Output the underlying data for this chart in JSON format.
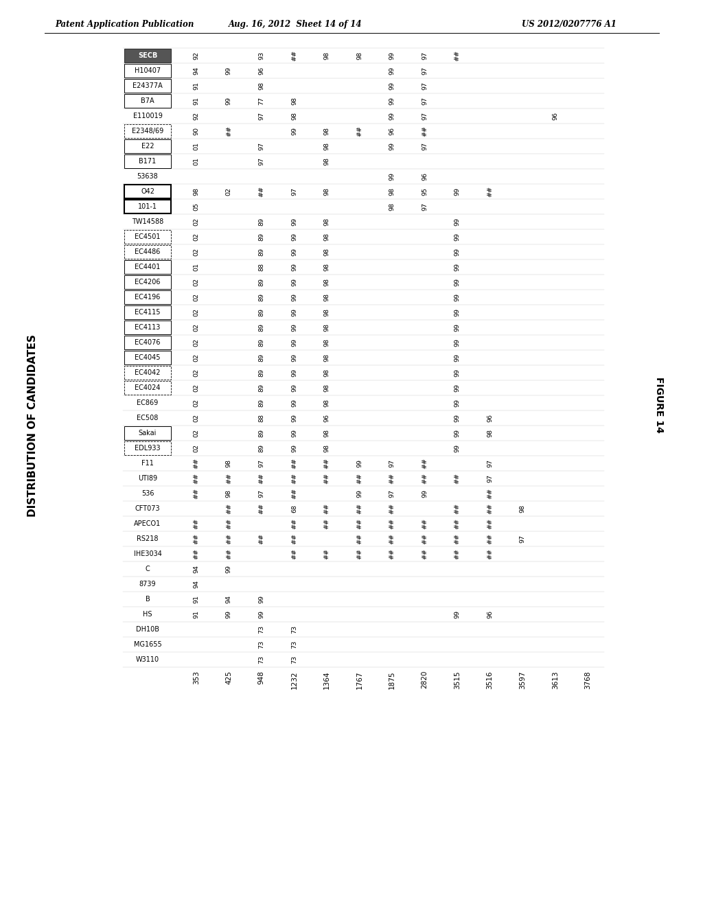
{
  "header_left": "Patent Application Publication",
  "header_mid": "Aug. 16, 2012  Sheet 14 of 14",
  "header_right": "US 2012/0207776 A1",
  "figure_label": "FIGURE 14",
  "vertical_label": "DISTRIBUTION OF CANDIDATES",
  "col_headers": [
    "353",
    "425",
    "948",
    "1232",
    "1364",
    "1767",
    "1875",
    "2820",
    "3515",
    "3516",
    "3597",
    "3613",
    "3768"
  ],
  "rows": [
    {
      "name": "SECB",
      "style": "dark",
      "values": [
        "92",
        "",
        "93",
        "##",
        "98",
        "98",
        "99",
        "97",
        "##",
        "",
        "",
        "",
        ""
      ]
    },
    {
      "name": "H10407",
      "style": "box",
      "values": [
        "94",
        "99",
        "96",
        "",
        "",
        "",
        "99",
        "97",
        "",
        "",
        "",
        "",
        ""
      ]
    },
    {
      "name": "E24377A",
      "style": "box",
      "values": [
        "91",
        "",
        "98",
        "",
        "",
        "",
        "99",
        "97",
        "",
        "",
        "",
        "",
        ""
      ]
    },
    {
      "name": "B7A",
      "style": "box",
      "values": [
        "91",
        "99",
        "77",
        "98",
        "",
        "",
        "99",
        "97",
        "",
        "",
        "",
        "",
        ""
      ]
    },
    {
      "name": "E110019",
      "style": "plain",
      "values": [
        "92",
        "",
        "97",
        "98",
        "",
        "",
        "99",
        "97",
        "",
        "",
        "",
        "96",
        ""
      ]
    },
    {
      "name": "E2348/69",
      "style": "dash",
      "values": [
        "90",
        "##",
        "",
        "99",
        "98",
        "##",
        "96",
        "##",
        "",
        "",
        "",
        "",
        ""
      ]
    },
    {
      "name": "E22",
      "style": "box",
      "values": [
        "01",
        "",
        "97",
        "",
        "98",
        "",
        "99",
        "97",
        "",
        "",
        "",
        "",
        ""
      ]
    },
    {
      "name": "B171",
      "style": "box",
      "values": [
        "01",
        "",
        "97",
        "",
        "98",
        "",
        "",
        "",
        "",
        "",
        "",
        "",
        ""
      ]
    },
    {
      "name": "53638",
      "style": "plain",
      "values": [
        "",
        "",
        "",
        "",
        "",
        "",
        "99",
        "96",
        "",
        "",
        "",
        "",
        ""
      ]
    },
    {
      "name": "O42",
      "style": "boxb",
      "values": [
        "98",
        "02",
        "##",
        "97",
        "98",
        "",
        "98",
        "95",
        "99",
        "##",
        "",
        "",
        ""
      ]
    },
    {
      "name": "101-1",
      "style": "boxb",
      "values": [
        "05",
        "",
        "",
        "",
        "",
        "",
        "98",
        "97",
        "",
        "",
        "",
        "",
        ""
      ]
    },
    {
      "name": "TW14588",
      "style": "plain",
      "values": [
        "02",
        "",
        "89",
        "99",
        "98",
        "",
        "",
        "",
        "99",
        "",
        "",
        "",
        ""
      ]
    },
    {
      "name": "EC4501",
      "style": "dash",
      "values": [
        "02",
        "",
        "89",
        "99",
        "98",
        "",
        "",
        "",
        "99",
        "",
        "",
        "",
        ""
      ]
    },
    {
      "name": "EC4486",
      "style": "dash",
      "values": [
        "02",
        "",
        "89",
        "99",
        "98",
        "",
        "",
        "",
        "99",
        "",
        "",
        "",
        ""
      ]
    },
    {
      "name": "EC4401",
      "style": "box",
      "values": [
        "01",
        "",
        "88",
        "99",
        "98",
        "",
        "",
        "",
        "99",
        "",
        "",
        "",
        ""
      ]
    },
    {
      "name": "EC4206",
      "style": "box",
      "values": [
        "02",
        "",
        "89",
        "99",
        "98",
        "",
        "",
        "",
        "99",
        "",
        "",
        "",
        ""
      ]
    },
    {
      "name": "EC4196",
      "style": "box",
      "values": [
        "02",
        "",
        "89",
        "99",
        "98",
        "",
        "",
        "",
        "99",
        "",
        "",
        "",
        ""
      ]
    },
    {
      "name": "EC4115",
      "style": "box",
      "values": [
        "02",
        "",
        "89",
        "99",
        "98",
        "",
        "",
        "",
        "99",
        "",
        "",
        "",
        ""
      ]
    },
    {
      "name": "EC4113",
      "style": "box",
      "values": [
        "02",
        "",
        "89",
        "99",
        "98",
        "",
        "",
        "",
        "99",
        "",
        "",
        "",
        ""
      ]
    },
    {
      "name": "EC4076",
      "style": "box",
      "values": [
        "02",
        "",
        "89",
        "99",
        "98",
        "",
        "",
        "",
        "99",
        "",
        "",
        "",
        ""
      ]
    },
    {
      "name": "EC4045",
      "style": "box",
      "values": [
        "02",
        "",
        "89",
        "99",
        "98",
        "",
        "",
        "",
        "99",
        "",
        "",
        "",
        ""
      ]
    },
    {
      "name": "EC4042",
      "style": "dash",
      "values": [
        "02",
        "",
        "89",
        "99",
        "98",
        "",
        "",
        "",
        "99",
        "",
        "",
        "",
        ""
      ]
    },
    {
      "name": "EC4024",
      "style": "dash",
      "values": [
        "02",
        "",
        "89",
        "99",
        "98",
        "",
        "",
        "",
        "99",
        "",
        "",
        "",
        ""
      ]
    },
    {
      "name": "EC869",
      "style": "plain",
      "values": [
        "02",
        "",
        "89",
        "99",
        "98",
        "",
        "",
        "",
        "99",
        "",
        "",
        "",
        ""
      ]
    },
    {
      "name": "EC508",
      "style": "plain",
      "values": [
        "02",
        "",
        "88",
        "99",
        "96",
        "",
        "",
        "",
        "99",
        "96",
        "",
        "",
        ""
      ]
    },
    {
      "name": "Sakai",
      "style": "box",
      "values": [
        "02",
        "",
        "89",
        "99",
        "98",
        "",
        "",
        "",
        "99",
        "98",
        "",
        "",
        ""
      ]
    },
    {
      "name": "EDL933",
      "style": "dash",
      "values": [
        "02",
        "",
        "89",
        "99",
        "98",
        "",
        "",
        "",
        "99",
        "",
        "",
        "",
        ""
      ]
    },
    {
      "name": "F11",
      "style": "plain",
      "values": [
        "##",
        "98",
        "97",
        "##",
        "##",
        "99",
        "97",
        "##",
        "",
        "97",
        "",
        "",
        ""
      ]
    },
    {
      "name": "UTI89",
      "style": "plain",
      "values": [
        "##",
        "##",
        "##",
        "##",
        "##",
        "##",
        "##",
        "##",
        "##",
        "97",
        "",
        "",
        ""
      ]
    },
    {
      "name": "536",
      "style": "plain",
      "values": [
        "##",
        "98",
        "97",
        "##",
        "",
        "99",
        "97",
        "99",
        "",
        "##",
        "",
        "",
        ""
      ]
    },
    {
      "name": "CFT073",
      "style": "plain",
      "values": [
        "",
        "##",
        "##",
        "68",
        "##",
        "##",
        "##",
        "",
        "##",
        "##",
        "98",
        "",
        ""
      ]
    },
    {
      "name": "APECO1",
      "style": "plain",
      "values": [
        "##",
        "##",
        "",
        "##",
        "##",
        "##",
        "##",
        "##",
        "##",
        "##",
        "",
        "",
        ""
      ]
    },
    {
      "name": "RS218",
      "style": "plain",
      "values": [
        "##",
        "##",
        "##",
        "##",
        "",
        "##",
        "##",
        "##",
        "##",
        "##",
        "97",
        "",
        ""
      ]
    },
    {
      "name": "IHE3034",
      "style": "plain",
      "values": [
        "##",
        "##",
        "",
        "##",
        "##",
        "##",
        "##",
        "##",
        "##",
        "##",
        "",
        "",
        ""
      ]
    },
    {
      "name": "C",
      "style": "plain",
      "values": [
        "94",
        "99",
        "",
        "",
        "",
        "",
        "",
        "",
        "",
        "",
        "",
        "",
        ""
      ]
    },
    {
      "name": "8739",
      "style": "plain",
      "values": [
        "94",
        "",
        "",
        "",
        "",
        "",
        "",
        "",
        "",
        "",
        "",
        "",
        ""
      ]
    },
    {
      "name": "B",
      "style": "plain",
      "values": [
        "91",
        "94",
        "99",
        "",
        "",
        "",
        "",
        "",
        "",
        "",
        "",
        "",
        ""
      ]
    },
    {
      "name": "HS",
      "style": "plain",
      "values": [
        "91",
        "99",
        "99",
        "",
        "",
        "",
        "",
        "",
        "99",
        "96",
        "",
        "",
        ""
      ]
    },
    {
      "name": "DH10B",
      "style": "plain",
      "values": [
        "",
        "",
        "73",
        "73",
        "",
        "",
        "",
        "",
        "",
        "",
        "",
        "",
        ""
      ]
    },
    {
      "name": "MG1655",
      "style": "plain",
      "values": [
        "",
        "",
        "73",
        "73",
        "",
        "",
        "",
        "",
        "",
        "",
        "",
        "",
        ""
      ]
    },
    {
      "name": "W3110",
      "style": "plain",
      "values": [
        "",
        "",
        "73",
        "73",
        "",
        "",
        "",
        "",
        "",
        "",
        "",
        "",
        ""
      ]
    }
  ]
}
